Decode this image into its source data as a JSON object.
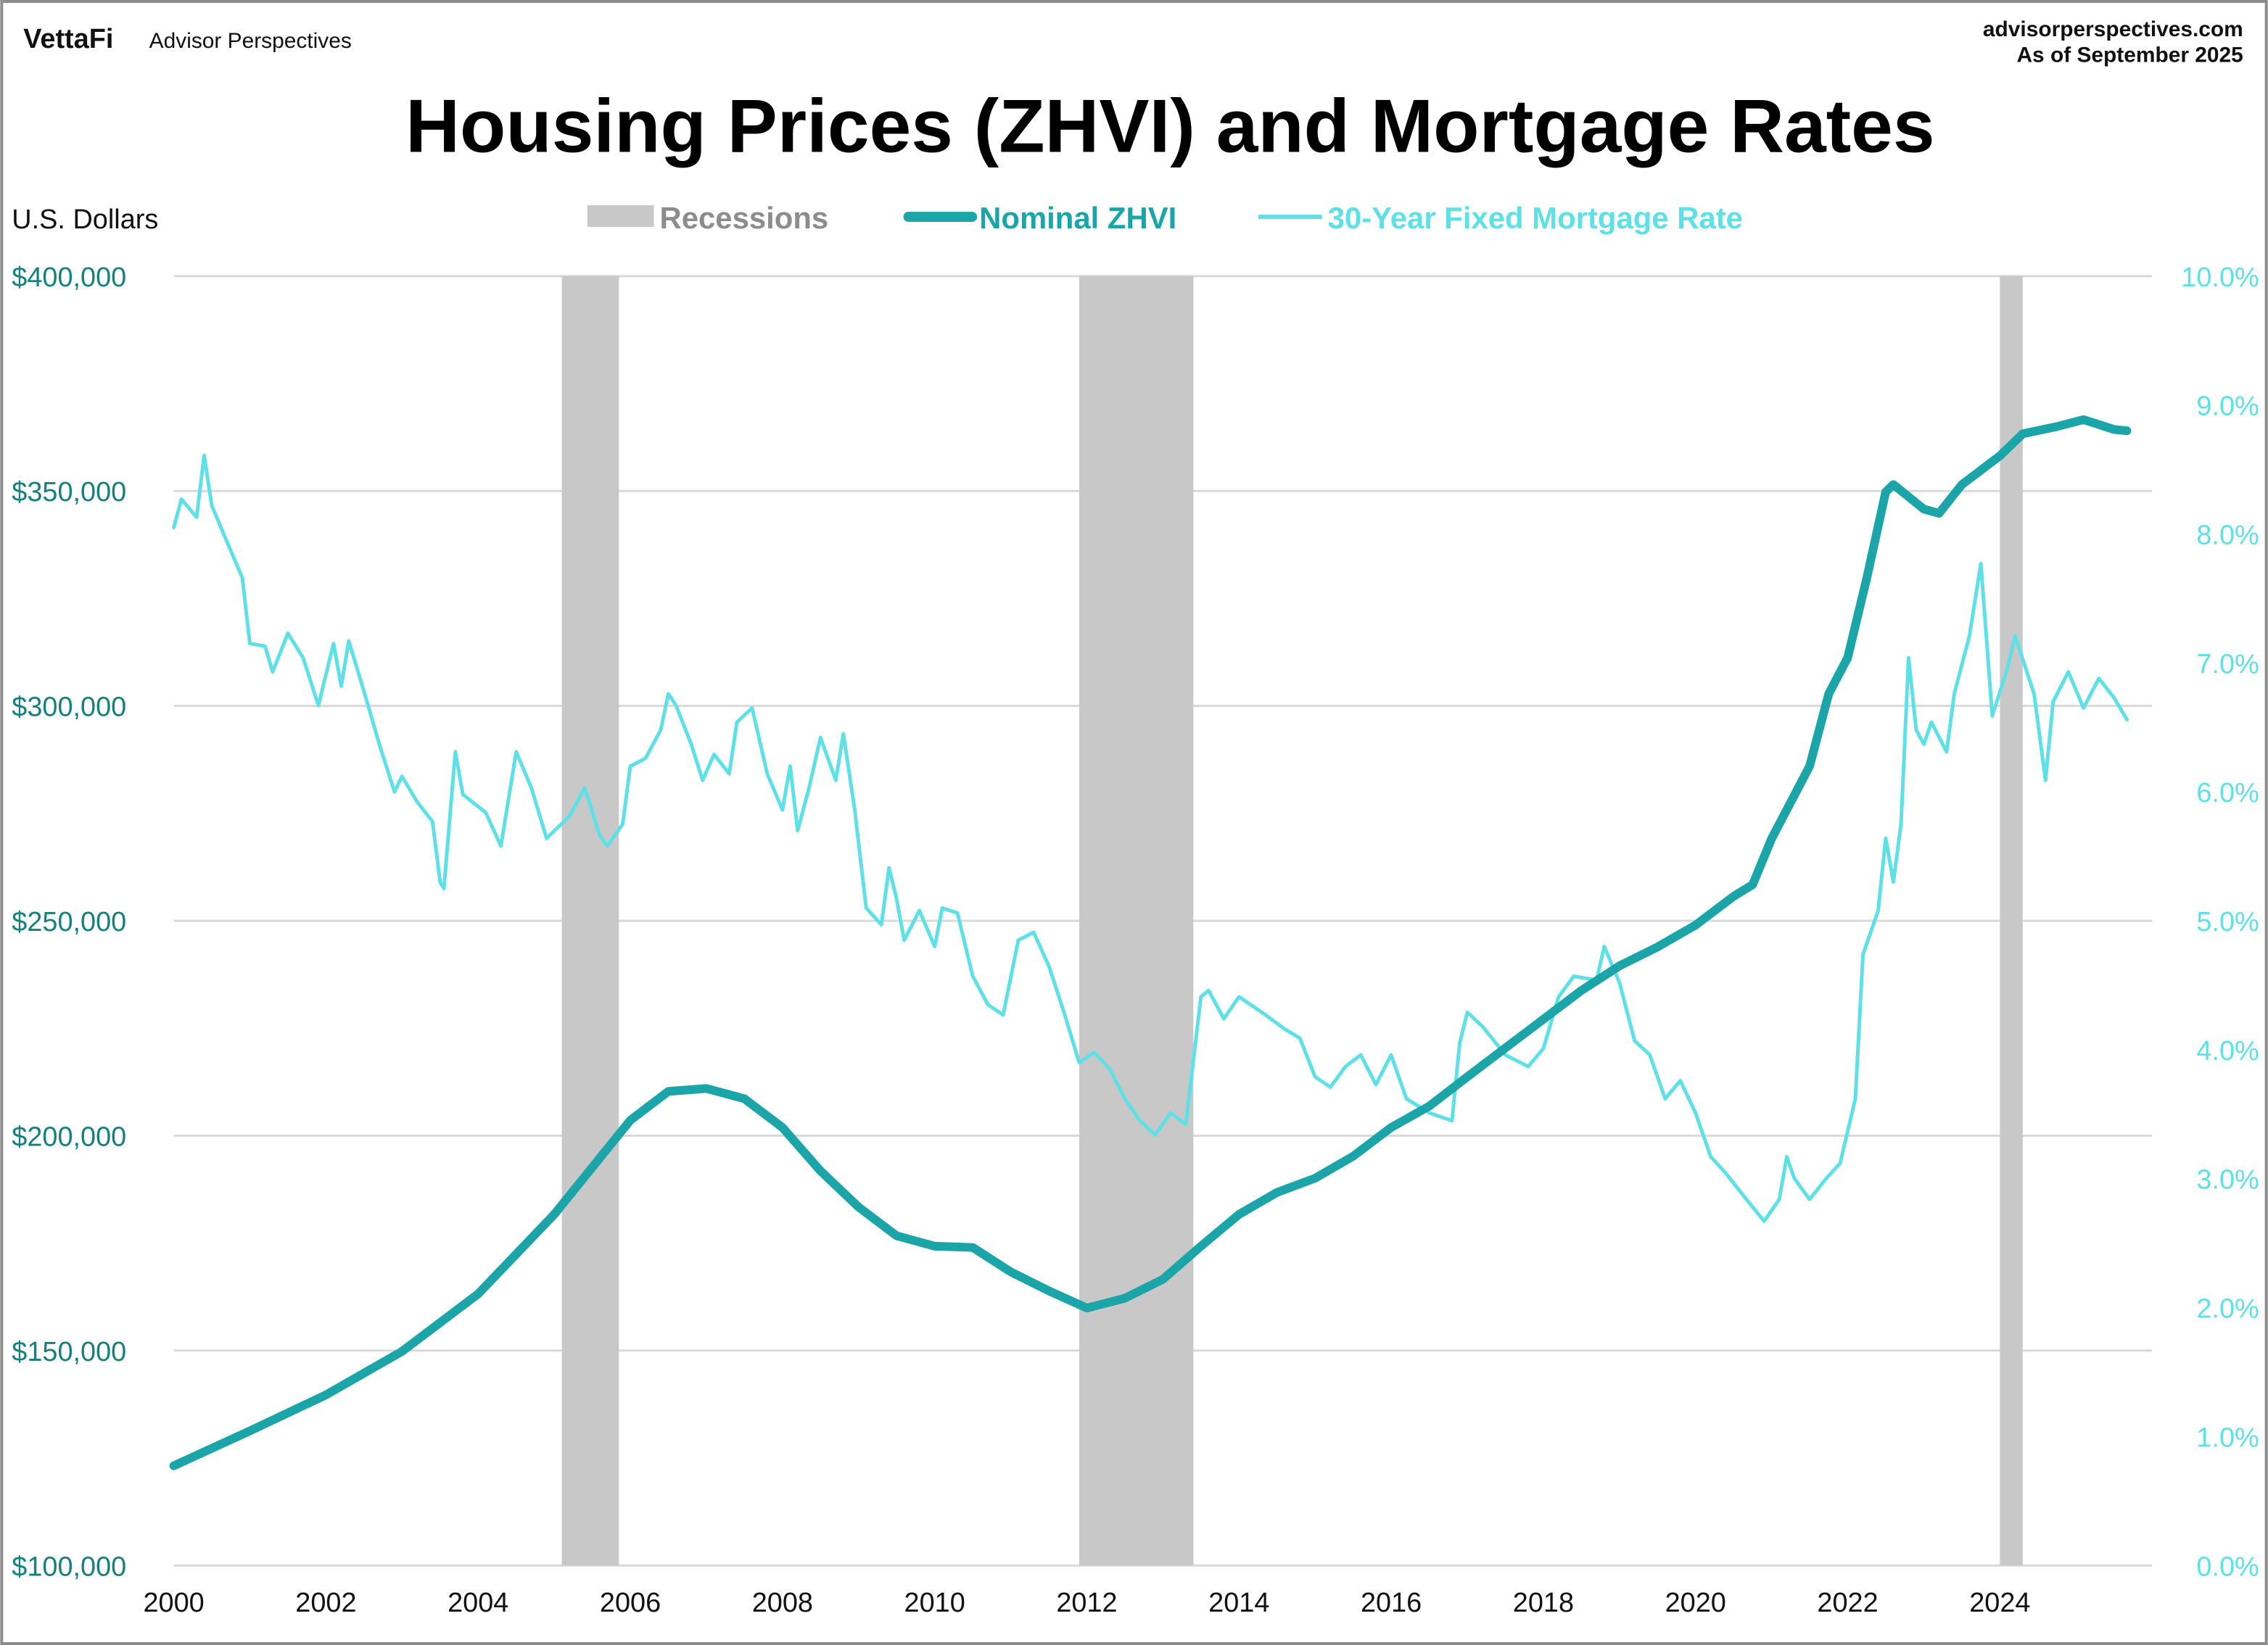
{
  "header": {
    "logo": "VettaFi",
    "brand": "Advisor Perspectives",
    "site": "advisorperspectives.com",
    "asof": "As of September 2025"
  },
  "colors": {
    "zhvi": "#1ba5a8",
    "rate": "#5ee0e6",
    "recession": "#c8c8c8",
    "left_axis": "#16807f",
    "grid": "#d9d9d9",
    "frame": "#8c8c8c"
  },
  "chart_data": {
    "type": "line",
    "title": "Housing Prices (ZHVI) and Mortgage Rates",
    "ylabel": "U.S. Dollars",
    "legend_position": "top",
    "legend": [
      "Recessions",
      "Nominal ZHVI",
      "30-Year Fixed Mortgage Rate"
    ],
    "xlim": [
      2000,
      2026
    ],
    "x_ticks": [
      "2000",
      "2002",
      "2004",
      "2006",
      "2008",
      "2010",
      "2012",
      "2014",
      "2016",
      "2018",
      "2020",
      "2022",
      "2024"
    ],
    "ylim_left": [
      100000,
      400000
    ],
    "y_ticks_left": [
      "$100,000",
      "$150,000",
      "$200,000",
      "$250,000",
      "$300,000",
      "$350,000",
      "$400,000"
    ],
    "ylim_right": [
      0,
      10
    ],
    "y_ticks_right": [
      "0.0%",
      "1.0%",
      "2.0%",
      "3.0%",
      "4.0%",
      "5.0%",
      "6.0%",
      "7.0%",
      "8.0%",
      "9.0%",
      "10.0%"
    ],
    "grid": true,
    "recessions": [
      [
        2005.1,
        2005.85
      ],
      [
        2011.9,
        2013.4
      ],
      [
        2024.0,
        2024.3
      ]
    ],
    "series": [
      {
        "name": "Nominal ZHVI",
        "axis": "left",
        "points": [
          [
            2000.0,
            123200
          ],
          [
            2001.0,
            131300
          ],
          [
            2002.0,
            139700
          ],
          [
            2003.0,
            149800
          ],
          [
            2004.0,
            163200
          ],
          [
            2005.0,
            181700
          ],
          [
            2006.0,
            203600
          ],
          [
            2006.5,
            210300
          ],
          [
            2007.0,
            211000
          ],
          [
            2007.5,
            208600
          ],
          [
            2008.0,
            201900
          ],
          [
            2008.5,
            191800
          ],
          [
            2009.0,
            183400
          ],
          [
            2009.5,
            176700
          ],
          [
            2010.0,
            174300
          ],
          [
            2010.5,
            174000
          ],
          [
            2011.0,
            168300
          ],
          [
            2011.5,
            163900
          ],
          [
            2012.0,
            159900
          ],
          [
            2012.5,
            162200
          ],
          [
            2013.0,
            166600
          ],
          [
            2013.5,
            174300
          ],
          [
            2014.0,
            181700
          ],
          [
            2014.5,
            186800
          ],
          [
            2015.0,
            190100
          ],
          [
            2015.5,
            195200
          ],
          [
            2016.0,
            201900
          ],
          [
            2016.5,
            206900
          ],
          [
            2017.0,
            213700
          ],
          [
            2017.5,
            220400
          ],
          [
            2018.0,
            227100
          ],
          [
            2018.5,
            233800
          ],
          [
            2019.0,
            239500
          ],
          [
            2019.5,
            243900
          ],
          [
            2020.0,
            249000
          ],
          [
            2020.5,
            255700
          ],
          [
            2020.75,
            258400
          ],
          [
            2021.0,
            269100
          ],
          [
            2021.5,
            286000
          ],
          [
            2021.75,
            302800
          ],
          [
            2022.0,
            311200
          ],
          [
            2022.25,
            329700
          ],
          [
            2022.5,
            349800
          ],
          [
            2022.6,
            351500
          ],
          [
            2023.0,
            345800
          ],
          [
            2023.2,
            344800
          ],
          [
            2023.5,
            351500
          ],
          [
            2024.0,
            358200
          ],
          [
            2024.3,
            363300
          ],
          [
            2024.75,
            365000
          ],
          [
            2025.1,
            366600
          ],
          [
            2025.5,
            364300
          ],
          [
            2025.67,
            364000
          ]
        ]
      },
      {
        "name": "30-Year Fixed Mortgage Rate",
        "axis": "right",
        "points": [
          [
            2000.0,
            8.05
          ],
          [
            2000.1,
            8.27
          ],
          [
            2000.3,
            8.13
          ],
          [
            2000.4,
            8.61
          ],
          [
            2000.5,
            8.22
          ],
          [
            2000.7,
            7.94
          ],
          [
            2000.9,
            7.66
          ],
          [
            2001.0,
            7.15
          ],
          [
            2001.2,
            7.13
          ],
          [
            2001.3,
            6.93
          ],
          [
            2001.5,
            7.23
          ],
          [
            2001.7,
            7.04
          ],
          [
            2001.9,
            6.67
          ],
          [
            2002.1,
            7.15
          ],
          [
            2002.2,
            6.82
          ],
          [
            2002.3,
            7.17
          ],
          [
            2002.5,
            6.78
          ],
          [
            2002.7,
            6.37
          ],
          [
            2002.9,
            6.0
          ],
          [
            2003.0,
            6.12
          ],
          [
            2003.2,
            5.92
          ],
          [
            2003.4,
            5.77
          ],
          [
            2003.5,
            5.3
          ],
          [
            2003.55,
            5.25
          ],
          [
            2003.7,
            6.31
          ],
          [
            2003.8,
            5.98
          ],
          [
            2004.1,
            5.84
          ],
          [
            2004.3,
            5.58
          ],
          [
            2004.5,
            6.31
          ],
          [
            2004.7,
            6.03
          ],
          [
            2004.9,
            5.64
          ],
          [
            2005.2,
            5.81
          ],
          [
            2005.4,
            6.03
          ],
          [
            2005.6,
            5.66
          ],
          [
            2005.7,
            5.58
          ],
          [
            2005.9,
            5.75
          ],
          [
            2006.0,
            6.2
          ],
          [
            2006.2,
            6.26
          ],
          [
            2006.4,
            6.48
          ],
          [
            2006.5,
            6.76
          ],
          [
            2006.6,
            6.67
          ],
          [
            2006.8,
            6.37
          ],
          [
            2006.95,
            6.09
          ],
          [
            2007.1,
            6.29
          ],
          [
            2007.3,
            6.14
          ],
          [
            2007.4,
            6.54
          ],
          [
            2007.6,
            6.65
          ],
          [
            2007.8,
            6.14
          ],
          [
            2008.0,
            5.86
          ],
          [
            2008.1,
            6.2
          ],
          [
            2008.2,
            5.7
          ],
          [
            2008.35,
            6.03
          ],
          [
            2008.5,
            6.42
          ],
          [
            2008.7,
            6.09
          ],
          [
            2008.8,
            6.45
          ],
          [
            2008.95,
            5.86
          ],
          [
            2009.1,
            5.1
          ],
          [
            2009.3,
            4.97
          ],
          [
            2009.4,
            5.41
          ],
          [
            2009.5,
            5.17
          ],
          [
            2009.6,
            4.85
          ],
          [
            2009.8,
            5.08
          ],
          [
            2010.0,
            4.8
          ],
          [
            2010.1,
            5.1
          ],
          [
            2010.3,
            5.06
          ],
          [
            2010.5,
            4.57
          ],
          [
            2010.7,
            4.35
          ],
          [
            2010.9,
            4.27
          ],
          [
            2011.1,
            4.85
          ],
          [
            2011.3,
            4.91
          ],
          [
            2011.5,
            4.65
          ],
          [
            2011.7,
            4.29
          ],
          [
            2011.9,
            3.9
          ],
          [
            2012.1,
            3.98
          ],
          [
            2012.3,
            3.85
          ],
          [
            2012.5,
            3.62
          ],
          [
            2012.7,
            3.45
          ],
          [
            2012.9,
            3.34
          ],
          [
            2013.1,
            3.51
          ],
          [
            2013.3,
            3.42
          ],
          [
            2013.5,
            4.41
          ],
          [
            2013.6,
            4.46
          ],
          [
            2013.8,
            4.24
          ],
          [
            2014.0,
            4.41
          ],
          [
            2014.3,
            4.29
          ],
          [
            2014.6,
            4.16
          ],
          [
            2014.8,
            4.09
          ],
          [
            2015.0,
            3.79
          ],
          [
            2015.2,
            3.71
          ],
          [
            2015.4,
            3.87
          ],
          [
            2015.6,
            3.96
          ],
          [
            2015.8,
            3.73
          ],
          [
            2016.0,
            3.96
          ],
          [
            2016.2,
            3.62
          ],
          [
            2016.5,
            3.51
          ],
          [
            2016.8,
            3.45
          ],
          [
            2016.9,
            4.05
          ],
          [
            2017.0,
            4.29
          ],
          [
            2017.2,
            4.18
          ],
          [
            2017.5,
            3.96
          ],
          [
            2017.8,
            3.87
          ],
          [
            2018.0,
            4.01
          ],
          [
            2018.2,
            4.41
          ],
          [
            2018.4,
            4.57
          ],
          [
            2018.7,
            4.54
          ],
          [
            2018.8,
            4.8
          ],
          [
            2019.0,
            4.52
          ],
          [
            2019.2,
            4.07
          ],
          [
            2019.4,
            3.96
          ],
          [
            2019.6,
            3.62
          ],
          [
            2019.8,
            3.76
          ],
          [
            2020.0,
            3.51
          ],
          [
            2020.2,
            3.17
          ],
          [
            2020.4,
            3.04
          ],
          [
            2020.6,
            2.89
          ],
          [
            2020.9,
            2.67
          ],
          [
            2021.1,
            2.84
          ],
          [
            2021.2,
            3.17
          ],
          [
            2021.3,
            3.0
          ],
          [
            2021.5,
            2.84
          ],
          [
            2021.7,
            2.99
          ],
          [
            2021.9,
            3.12
          ],
          [
            2022.1,
            3.62
          ],
          [
            2022.2,
            4.74
          ],
          [
            2022.4,
            5.08
          ],
          [
            2022.5,
            5.64
          ],
          [
            2022.6,
            5.3
          ],
          [
            2022.7,
            5.75
          ],
          [
            2022.8,
            7.04
          ],
          [
            2022.9,
            6.48
          ],
          [
            2023.0,
            6.37
          ],
          [
            2023.1,
            6.54
          ],
          [
            2023.3,
            6.31
          ],
          [
            2023.4,
            6.76
          ],
          [
            2023.6,
            7.21
          ],
          [
            2023.75,
            7.77
          ],
          [
            2023.9,
            6.59
          ],
          [
            2024.1,
            6.96
          ],
          [
            2024.2,
            7.21
          ],
          [
            2024.45,
            6.76
          ],
          [
            2024.6,
            6.09
          ],
          [
            2024.7,
            6.7
          ],
          [
            2024.9,
            6.93
          ],
          [
            2025.1,
            6.65
          ],
          [
            2025.3,
            6.88
          ],
          [
            2025.5,
            6.73
          ],
          [
            2025.67,
            6.56
          ]
        ]
      }
    ]
  }
}
